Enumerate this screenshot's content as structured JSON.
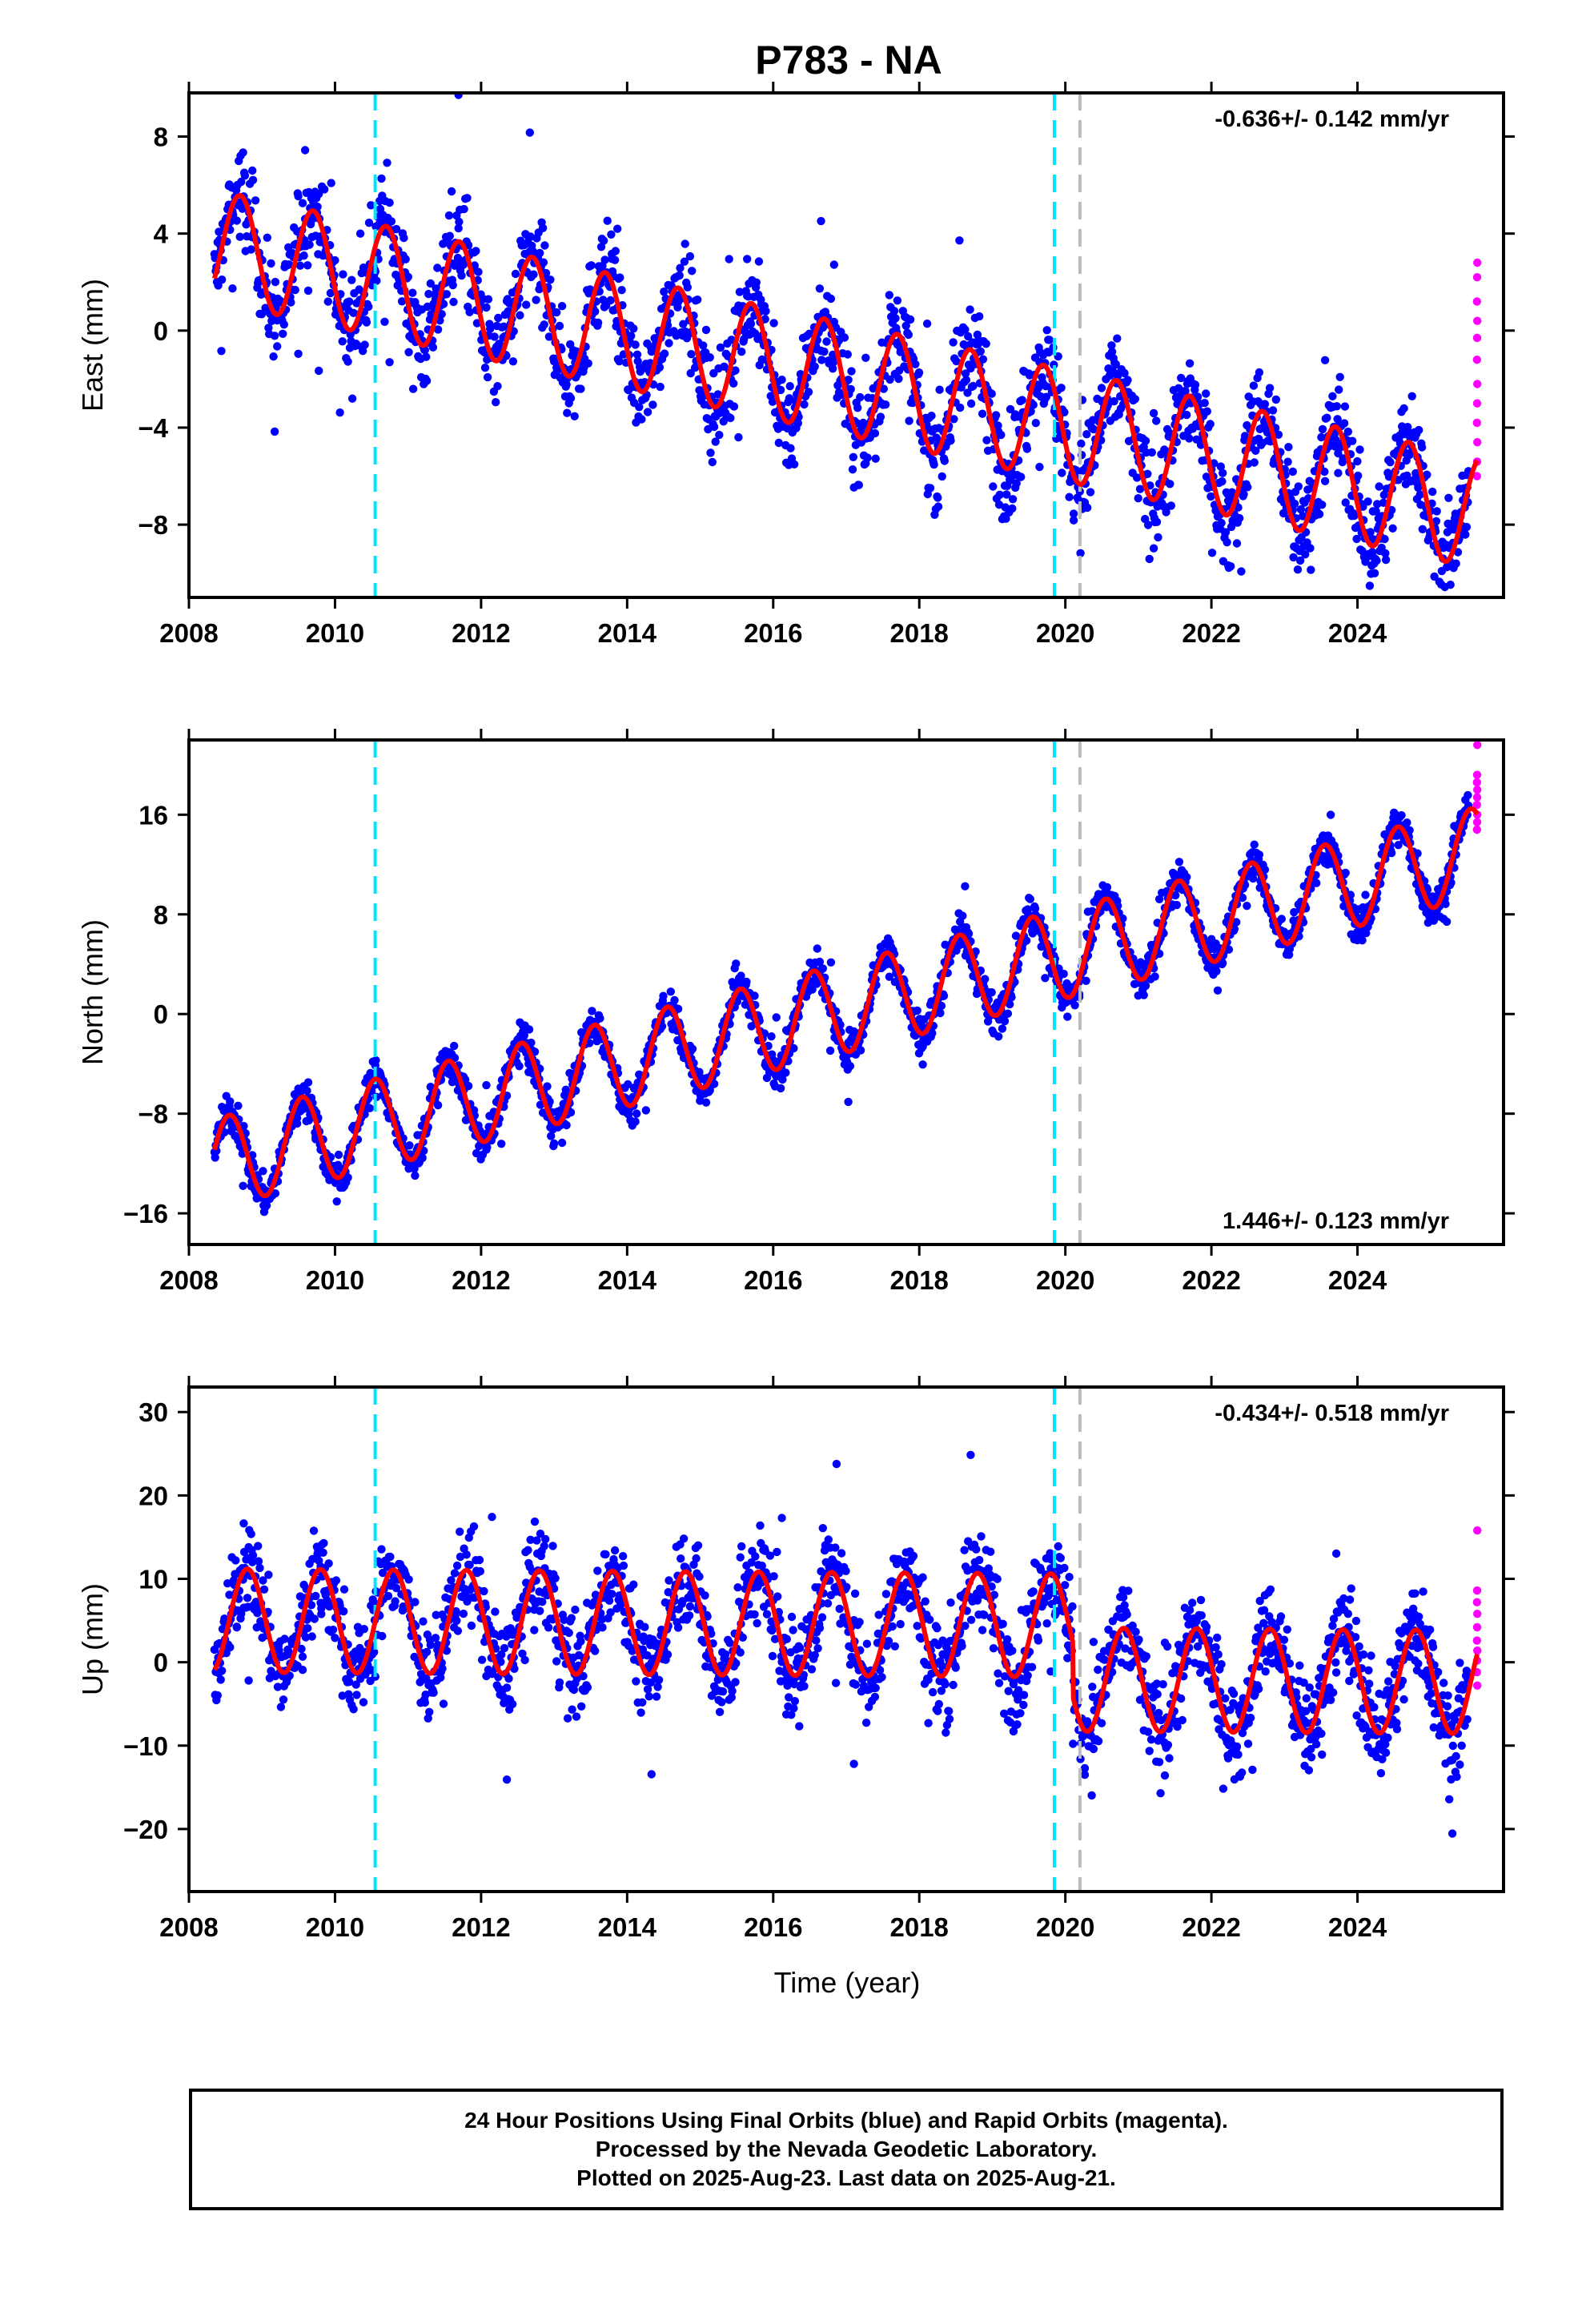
{
  "chart_data": {
    "title": "P783 - NA",
    "xlabel": "Time (year)",
    "xlim": [
      2008,
      2026
    ],
    "x_ticks": [
      2008,
      2010,
      2012,
      2014,
      2016,
      2018,
      2020,
      2022,
      2024
    ],
    "colors": {
      "final_orbits": "#0000ff",
      "rapid_orbits": "#ff00ff",
      "model": "#ff0000",
      "offset_equipment": "#00e5ff",
      "offset_other": "#bbbbbb",
      "frame": "#000000"
    },
    "offsets": {
      "cyan": [
        2010.55,
        2019.85
      ],
      "gray": [
        2020.2
      ]
    },
    "data_span": [
      2008.35,
      2025.64
    ],
    "rapid_span": [
      2025.52,
      2025.64
    ],
    "panels": [
      {
        "type": "scatter",
        "ylabel": "East (mm)",
        "ylim": [
          -11,
          9.8
        ],
        "y_ticks": [
          8,
          4,
          0,
          -4,
          -8
        ],
        "rate_label": "-0.636+/- 0.142 mm/yr",
        "rate_position": "top-right",
        "trend_start": 3.5,
        "trend_slope": -0.636,
        "seasonal_amplitude": 2.3,
        "seasonal_phase": 0.45,
        "model_steps": [],
        "scatter": 1.4,
        "rapid_values": [
          2.8,
          2.2,
          1.2,
          0.4,
          -0.3,
          -1.2,
          -2.2,
          -3.0,
          -3.8,
          -4.6,
          -5.4,
          -6.0
        ]
      },
      {
        "type": "scatter",
        "ylabel": "North (mm)",
        "ylim": [
          -18.5,
          22
        ],
        "y_ticks": [
          16,
          8,
          0,
          -8,
          -16
        ],
        "rate_label": "1.446+/- 0.123 mm/yr",
        "rate_position": "bottom-right",
        "trend_start": -12,
        "trend_slope": 1.446,
        "seasonal_amplitude": 3.6,
        "seasonal_phase": 0.3,
        "model_steps": [],
        "scatter": 1.1,
        "rapid_values": [
          21.6,
          19.2,
          18.6,
          18.0,
          17.4,
          16.8,
          16.0,
          15.4,
          14.8
        ]
      },
      {
        "type": "scatter",
        "ylabel": "Up (mm)",
        "ylim": [
          -27.5,
          33
        ],
        "y_ticks": [
          30,
          20,
          10,
          0,
          -10,
          -20
        ],
        "rate_label": "-0.434+/- 0.518 mm/yr",
        "rate_position": "top-right",
        "trend_start": 5,
        "trend_slope": -0.05,
        "seasonal_amplitude": 6.2,
        "seasonal_phase": 0.55,
        "model_steps": [
          {
            "at": 2020.1,
            "delta": -6.5
          }
        ],
        "scatter": 4.0,
        "rapid_values": [
          15.8,
          8.6,
          7.2,
          5.8,
          4.2,
          2.6,
          1.4,
          0.2,
          -1.2,
          -2.8
        ]
      }
    ]
  },
  "footer": {
    "line1": "24 Hour Positions Using Final Orbits (blue) and Rapid Orbits (magenta).",
    "line2": "Processed by the Nevada Geodetic Laboratory.",
    "line3": "Plotted on 2025-Aug-23. Last data on 2025-Aug-21."
  }
}
